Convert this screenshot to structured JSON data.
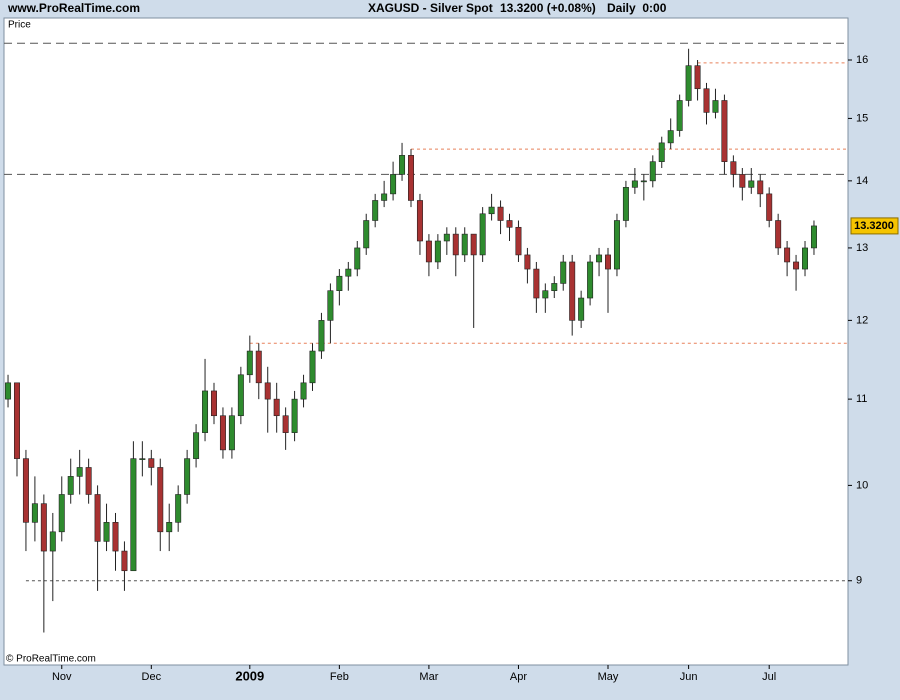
{
  "chart_data": {
    "type": "candlestick",
    "site": "www.ProRealTime.com",
    "title": "XAGUSD - Silver Spot",
    "quote": "13.3200 (+0.08%)",
    "period": "Daily  0:00",
    "panel_label": "Price",
    "copyright": "© ProRealTime.com",
    "up_color": "#2e8b2e",
    "down_color": "#a83232",
    "yscale": "log",
    "ylim": [
      8.2,
      16.76
    ],
    "yticks": [
      9,
      10,
      11,
      12,
      13,
      14,
      15,
      16
    ],
    "xlim": [
      -0.45,
      93.8
    ],
    "xticks": [
      {
        "value": 6,
        "label": "Nov"
      },
      {
        "value": 16,
        "label": "Dec"
      },
      {
        "value": 27,
        "label": "2009"
      },
      {
        "value": 37,
        "label": "Feb"
      },
      {
        "value": 47,
        "label": "Mar"
      },
      {
        "value": 57,
        "label": "Apr"
      },
      {
        "value": 67,
        "label": "May"
      },
      {
        "value": 76,
        "label": "Jun"
      },
      {
        "value": 85,
        "label": "Jul"
      }
    ],
    "last_price": {
      "value": 13.32,
      "label": "13.3200"
    },
    "lines": [
      {
        "value": 16.3,
        "color": "#555555",
        "style": "dashed",
        "start": -0.45
      },
      {
        "value": 14.1,
        "color": "#555555",
        "style": "dashed",
        "start": -0.45
      },
      {
        "value": 9.0,
        "color": "#555555",
        "style": "dotted",
        "start": 2
      },
      {
        "value": 15.95,
        "color": "#e8805a",
        "style": "dotted",
        "start": 77
      },
      {
        "value": 14.5,
        "color": "#e8805a",
        "style": "dotted",
        "start": 45
      },
      {
        "value": 11.7,
        "color": "#e8805a",
        "style": "dotted",
        "start": 27
      }
    ],
    "ohlc": [
      [
        11.0,
        11.3,
        10.9,
        11.2
      ],
      [
        11.2,
        11.2,
        10.1,
        10.3
      ],
      [
        10.3,
        10.4,
        9.3,
        9.6
      ],
      [
        9.6,
        10.1,
        9.4,
        9.8
      ],
      [
        9.8,
        9.9,
        8.5,
        9.3
      ],
      [
        9.3,
        9.7,
        8.8,
        9.5
      ],
      [
        9.5,
        10.1,
        9.4,
        9.9
      ],
      [
        9.9,
        10.3,
        9.8,
        10.1
      ],
      [
        10.1,
        10.4,
        9.9,
        10.2
      ],
      [
        10.2,
        10.3,
        9.8,
        9.9
      ],
      [
        9.9,
        10.0,
        8.9,
        9.4
      ],
      [
        9.4,
        9.8,
        9.3,
        9.6
      ],
      [
        9.6,
        9.7,
        9.1,
        9.3
      ],
      [
        9.3,
        9.4,
        8.9,
        9.1
      ],
      [
        9.1,
        10.5,
        9.1,
        10.3
      ],
      [
        10.3,
        10.5,
        10.1,
        10.3
      ],
      [
        10.3,
        10.4,
        10.0,
        10.2
      ],
      [
        10.2,
        10.3,
        9.3,
        9.5
      ],
      [
        9.5,
        9.8,
        9.3,
        9.6
      ],
      [
        9.6,
        10.0,
        9.5,
        9.9
      ],
      [
        9.9,
        10.4,
        9.8,
        10.3
      ],
      [
        10.3,
        10.7,
        10.2,
        10.6
      ],
      [
        10.6,
        11.5,
        10.5,
        11.1
      ],
      [
        11.1,
        11.2,
        10.7,
        10.8
      ],
      [
        10.8,
        10.9,
        10.3,
        10.4
      ],
      [
        10.4,
        10.9,
        10.3,
        10.8
      ],
      [
        10.8,
        11.4,
        10.7,
        11.3
      ],
      [
        11.3,
        11.8,
        11.2,
        11.6
      ],
      [
        11.6,
        11.7,
        11.0,
        11.2
      ],
      [
        11.2,
        11.4,
        10.6,
        11.0
      ],
      [
        11.0,
        11.2,
        10.6,
        10.8
      ],
      [
        10.8,
        10.9,
        10.4,
        10.6
      ],
      [
        10.6,
        11.1,
        10.5,
        11.0
      ],
      [
        11.0,
        11.3,
        10.9,
        11.2
      ],
      [
        11.2,
        11.7,
        11.1,
        11.6
      ],
      [
        11.6,
        12.1,
        11.5,
        12.0
      ],
      [
        12.0,
        12.5,
        11.7,
        12.4
      ],
      [
        12.4,
        12.7,
        12.2,
        12.6
      ],
      [
        12.6,
        12.8,
        12.4,
        12.7
      ],
      [
        12.7,
        13.1,
        12.6,
        13.0
      ],
      [
        13.0,
        13.5,
        12.9,
        13.4
      ],
      [
        13.4,
        13.8,
        13.3,
        13.7
      ],
      [
        13.7,
        14.0,
        13.6,
        13.8
      ],
      [
        13.8,
        14.3,
        13.7,
        14.1
      ],
      [
        14.1,
        14.6,
        14.0,
        14.4
      ],
      [
        14.4,
        14.5,
        13.6,
        13.7
      ],
      [
        13.7,
        13.8,
        12.9,
        13.1
      ],
      [
        13.1,
        13.2,
        12.6,
        12.8
      ],
      [
        12.8,
        13.2,
        12.7,
        13.1
      ],
      [
        13.1,
        13.3,
        12.9,
        13.2
      ],
      [
        13.2,
        13.3,
        12.6,
        12.9
      ],
      [
        12.9,
        13.3,
        12.8,
        13.2
      ],
      [
        13.2,
        13.2,
        11.9,
        12.9
      ],
      [
        12.9,
        13.6,
        12.8,
        13.5
      ],
      [
        13.5,
        13.8,
        13.4,
        13.6
      ],
      [
        13.6,
        13.7,
        13.2,
        13.4
      ],
      [
        13.4,
        13.5,
        13.1,
        13.3
      ],
      [
        13.3,
        13.4,
        12.8,
        12.9
      ],
      [
        12.9,
        13.0,
        12.5,
        12.7
      ],
      [
        12.7,
        12.8,
        12.1,
        12.3
      ],
      [
        12.3,
        12.5,
        12.1,
        12.4
      ],
      [
        12.4,
        12.6,
        12.3,
        12.5
      ],
      [
        12.5,
        12.9,
        12.4,
        12.8
      ],
      [
        12.8,
        12.9,
        11.8,
        12.0
      ],
      [
        12.0,
        12.4,
        11.9,
        12.3
      ],
      [
        12.3,
        12.9,
        12.2,
        12.8
      ],
      [
        12.8,
        13.0,
        12.6,
        12.9
      ],
      [
        12.9,
        13.0,
        12.1,
        12.7
      ],
      [
        12.7,
        13.5,
        12.6,
        13.4
      ],
      [
        13.4,
        14.0,
        13.3,
        13.9
      ],
      [
        13.9,
        14.2,
        13.8,
        14.0
      ],
      [
        14.0,
        14.1,
        13.7,
        14.0
      ],
      [
        14.0,
        14.4,
        13.9,
        14.3
      ],
      [
        14.3,
        14.7,
        14.2,
        14.6
      ],
      [
        14.6,
        15.0,
        14.5,
        14.8
      ],
      [
        14.8,
        15.4,
        14.7,
        15.3
      ],
      [
        15.3,
        16.2,
        15.2,
        15.9
      ],
      [
        15.9,
        16.0,
        15.3,
        15.5
      ],
      [
        15.5,
        15.6,
        14.9,
        15.1
      ],
      [
        15.1,
        15.5,
        15.0,
        15.3
      ],
      [
        15.3,
        15.4,
        14.1,
        14.3
      ],
      [
        14.3,
        14.4,
        13.9,
        14.1
      ],
      [
        14.1,
        14.2,
        13.7,
        13.9
      ],
      [
        13.9,
        14.2,
        13.8,
        14.0
      ],
      [
        14.0,
        14.1,
        13.6,
        13.8
      ],
      [
        13.8,
        13.9,
        13.3,
        13.4
      ],
      [
        13.4,
        13.5,
        12.9,
        13.0
      ],
      [
        13.0,
        13.1,
        12.6,
        12.8
      ],
      [
        12.8,
        12.9,
        12.4,
        12.7
      ],
      [
        12.7,
        13.1,
        12.6,
        13.0
      ],
      [
        13.0,
        13.4,
        12.9,
        13.32
      ]
    ]
  }
}
